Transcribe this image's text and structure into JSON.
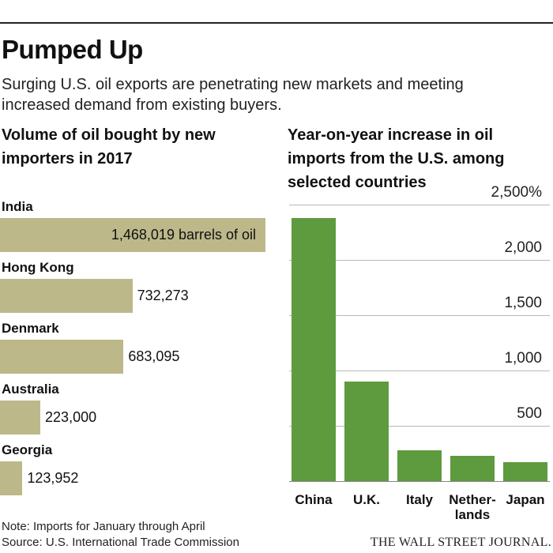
{
  "header": {
    "title": "Pumped Up",
    "subtitle": "Surging U.S. oil exports are penetrating new markets and meeting increased demand from existing buyers."
  },
  "chart_data": [
    {
      "type": "bar",
      "orientation": "horizontal",
      "title": "Volume of oil bought by new importers in 2017",
      "categories": [
        "India",
        "Hong Kong",
        "Denmark",
        "Australia",
        "Georgia"
      ],
      "values": [
        1468019,
        732273,
        683095,
        223000,
        123952
      ],
      "value_labels": [
        "1,468,019 barrels of oil",
        "732,273",
        "683,095",
        "223,000",
        "123,952"
      ],
      "color": "#bcb88a"
    },
    {
      "type": "bar",
      "orientation": "vertical",
      "title": "Year-on-year increase in oil imports from the U.S. among selected countries",
      "categories": [
        "China",
        "U.K.",
        "Italy",
        "Nether-\nlands",
        "Japan"
      ],
      "values": [
        2380,
        900,
        280,
        230,
        175
      ],
      "ylim": [
        0,
        2500
      ],
      "yticks": [
        500,
        1000,
        1500,
        2000,
        2500
      ],
      "ytick_labels": [
        "500",
        "1,000",
        "1,500",
        "2,000",
        "2,500%"
      ],
      "grid": true,
      "color": "#5e9a3e"
    }
  ],
  "footer": {
    "note": "Note: Imports for January through April",
    "source": "Source: U.S. International Trade Commission",
    "brand": "THE WALL STREET JOURNAL."
  }
}
